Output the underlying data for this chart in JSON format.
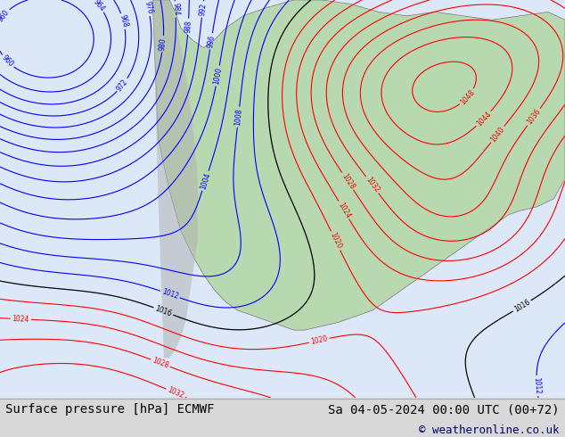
{
  "title_left": "Surface pressure [hPa] ECMWF",
  "title_right": "Sa 04-05-2024 00:00 UTC (00+72)",
  "copyright": "© weatheronline.co.uk",
  "bg_color": "#d8d8d8",
  "map_bg": "#c8dfc8",
  "footer_bg": "#f0f0f0",
  "footer_text_color": "#000000",
  "copyright_color": "#000066",
  "title_fontsize": 10,
  "copyright_fontsize": 9,
  "ocean_color": "#dce8f8",
  "land_color": "#b8d8b0",
  "terrain_color": "#b0b0b0"
}
